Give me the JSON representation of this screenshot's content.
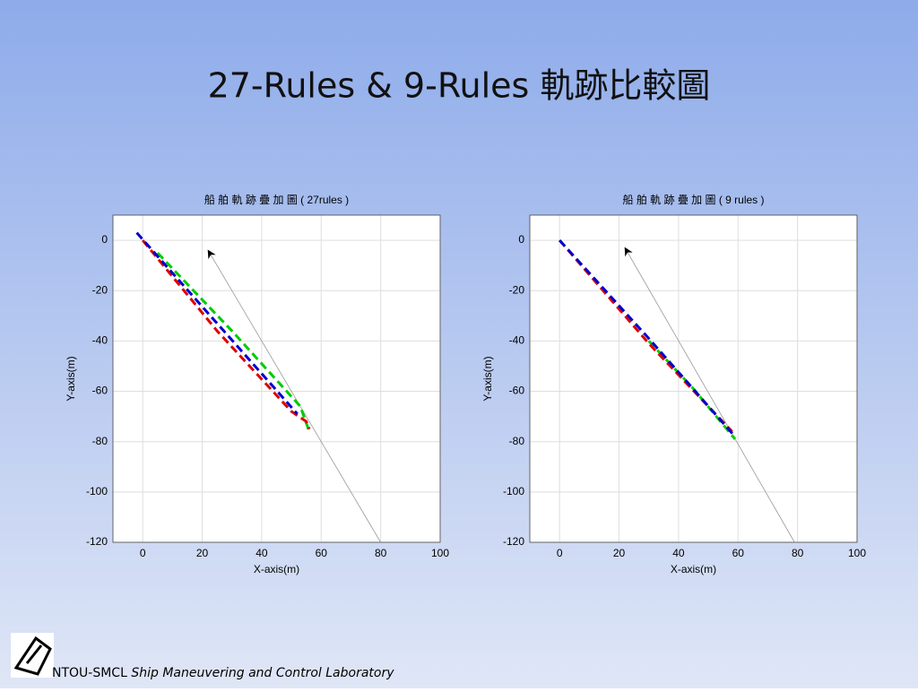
{
  "slide": {
    "title": "27-Rules & 9-Rules 軌跡比較圖",
    "footer_lab": "NTOU-SMCL",
    "footer_name": "Ship Maneuvering and Control Laboratory"
  },
  "chart_data": [
    {
      "type": "line",
      "title": "船 舶 軌 跡 疊 加 圖 ( 27rules )",
      "x_label": "X-axis(m)",
      "y_label": "Y-axis(m)",
      "xlim": [
        -10,
        100
      ],
      "ylim": [
        -120,
        10
      ],
      "xticks": [
        0,
        20,
        40,
        60,
        80,
        100
      ],
      "yticks": [
        0,
        -20,
        -40,
        -60,
        -80,
        -100,
        -120
      ],
      "grid": true,
      "series": [
        {
          "color": "#999999",
          "dash": "none",
          "x": [
            80,
            22
          ],
          "values": [
            -120,
            -4
          ]
        },
        {
          "color": "#00cc00",
          "dash": "dash",
          "x": [
            5,
            30,
            53,
            56
          ],
          "values": [
            -5,
            -36,
            -66,
            -76
          ]
        },
        {
          "color": "#dd0000",
          "dash": "dash",
          "x": [
            0,
            25,
            50,
            55,
            56
          ],
          "values": [
            0,
            -36,
            -68,
            -72,
            -75
          ]
        },
        {
          "color": "#0000cc",
          "dash": "dash",
          "x": [
            -2,
            25,
            52
          ],
          "values": [
            3,
            -33,
            -69
          ]
        }
      ]
    },
    {
      "type": "line",
      "title": "船 舶 軌 跡 疊 加 圖 ( 9 rules )",
      "x_label": "X-axis(m)",
      "y_label": "Y-axis(m)",
      "xlim": [
        -10,
        100
      ],
      "ylim": [
        -120,
        10
      ],
      "xticks": [
        0,
        20,
        40,
        60,
        80,
        100
      ],
      "yticks": [
        0,
        -20,
        -40,
        -60,
        -80,
        -100,
        -120
      ],
      "grid": true,
      "series": [
        {
          "color": "#999999",
          "dash": "none",
          "x": [
            79,
            22
          ],
          "values": [
            -120,
            -3
          ]
        },
        {
          "color": "#00cc00",
          "dash": "dash",
          "x": [
            30,
            45,
            59
          ],
          "values": [
            -40,
            -59,
            -79
          ]
        },
        {
          "color": "#dd0000",
          "dash": "dash",
          "x": [
            0,
            30,
            58
          ],
          "values": [
            0,
            -41,
            -76
          ]
        },
        {
          "color": "#0000cc",
          "dash": "dash",
          "x": [
            0,
            30,
            59
          ],
          "values": [
            0,
            -39,
            -78
          ]
        }
      ]
    }
  ]
}
